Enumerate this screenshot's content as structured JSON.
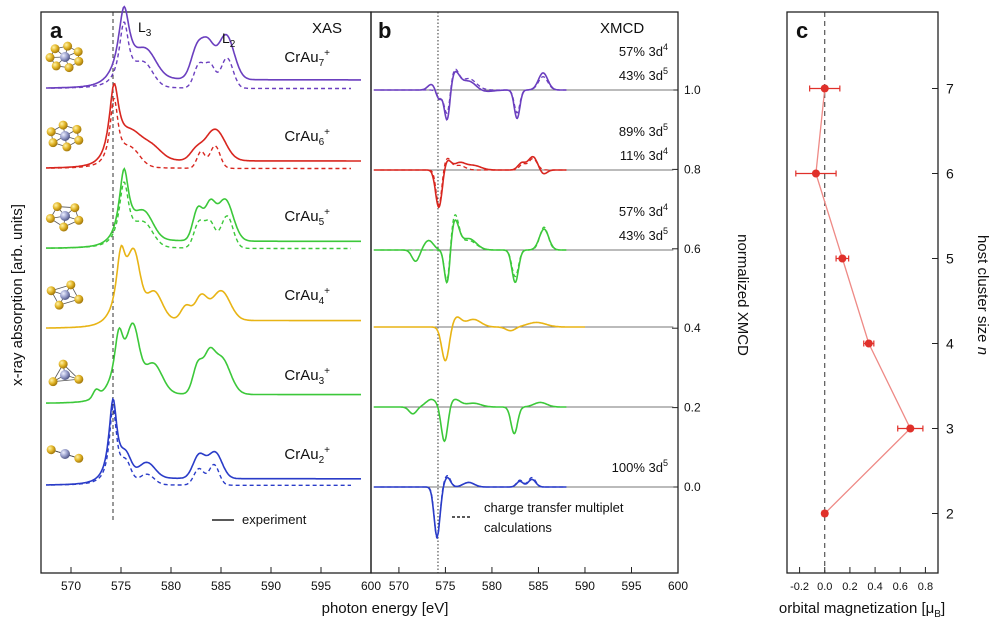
{
  "chart_data": [
    {
      "panel": "a",
      "type": "line",
      "title": "XAS",
      "xlabel": "photon energy [eV]",
      "ylabel": "x-ray absorption [arb. units]",
      "xlim": [
        567,
        600
      ],
      "xticks": [
        570,
        575,
        580,
        585,
        590,
        595,
        600
      ],
      "edge_labels": [
        "L3",
        "L2"
      ],
      "vertical_dashed_line_x": 574.2,
      "legend": {
        "line": "experiment",
        "position": "bottom"
      },
      "series": [
        {
          "name": "CrAu7+",
          "sub": "7",
          "color": "#6b3fbf",
          "peak_labels": true
        },
        {
          "name": "CrAu6+",
          "sub": "6",
          "color": "#d8261f"
        },
        {
          "name": "CrAu5+",
          "sub": "5",
          "color": "#3cc83a"
        },
        {
          "name": "CrAu4+",
          "sub": "4",
          "color": "#e8b415",
          "experiment_only": true
        },
        {
          "name": "CrAu3+",
          "sub": "3",
          "color": "#3cc83a",
          "experiment_only": true
        },
        {
          "name": "CrAu2+",
          "sub": "2",
          "color": "#2a3cc8"
        }
      ]
    },
    {
      "panel": "b",
      "type": "line",
      "title": "XMCD",
      "xlabel": "photon energy [eV]",
      "ylabel": "normalized XMCD",
      "xlim": [
        567,
        600
      ],
      "xticks": [
        570,
        575,
        580,
        585,
        590,
        595,
        600
      ],
      "yticks": [
        0.0,
        0.2,
        0.4,
        0.6,
        0.8,
        1.0
      ],
      "ytick_labels": [
        "0.0",
        "0.2",
        "0.4",
        "0.6",
        "0.8",
        "1.0"
      ],
      "baselines": [
        1.0,
        0.8,
        0.6,
        0.4,
        0.2,
        0.0
      ],
      "vertical_dotted_line_x": 574.2,
      "legend": {
        "line": "charge transfer multiplet calculations",
        "position": "bottom-right"
      },
      "annotations": [
        {
          "lines": [
            [
              "57% 3d",
              "4"
            ],
            [
              "43% 3d",
              "5"
            ]
          ]
        },
        {
          "lines": [
            [
              "89% 3d",
              "5"
            ],
            [
              "11% 3d",
              "4"
            ]
          ]
        },
        {
          "lines": [
            [
              "57% 3d",
              "4"
            ],
            [
              "43% 3d",
              "5"
            ]
          ]
        },
        {
          "lines": [
            [
              "100% 3d",
              "5"
            ]
          ]
        }
      ]
    },
    {
      "panel": "c",
      "type": "scatter",
      "xlabel": "orbital magnetization [μB]",
      "ylabel": "host cluster size n",
      "xlim": [
        -0.3,
        0.9
      ],
      "ylim": [
        1.3,
        7.9
      ],
      "xticks": [
        -0.2,
        0.0,
        0.2,
        0.4,
        0.6,
        0.8
      ],
      "xtick_labels": [
        "-0.2",
        "0.0",
        "0.2",
        "0.4",
        "0.6",
        "0.8"
      ],
      "yticks": [
        2,
        3,
        4,
        5,
        6,
        7
      ],
      "color": "#e0302a",
      "points": [
        {
          "n": 7,
          "x": 0.0,
          "xerr": 0.12
        },
        {
          "n": 6,
          "x": -0.07,
          "xerr": 0.16
        },
        {
          "n": 5,
          "x": 0.14,
          "xerr": 0.05
        },
        {
          "n": 4,
          "x": 0.35,
          "xerr": 0.04
        },
        {
          "n": 3,
          "x": 0.68,
          "xerr": 0.1
        },
        {
          "n": 2,
          "x": 0.0,
          "xerr": 0.02
        }
      ]
    }
  ]
}
